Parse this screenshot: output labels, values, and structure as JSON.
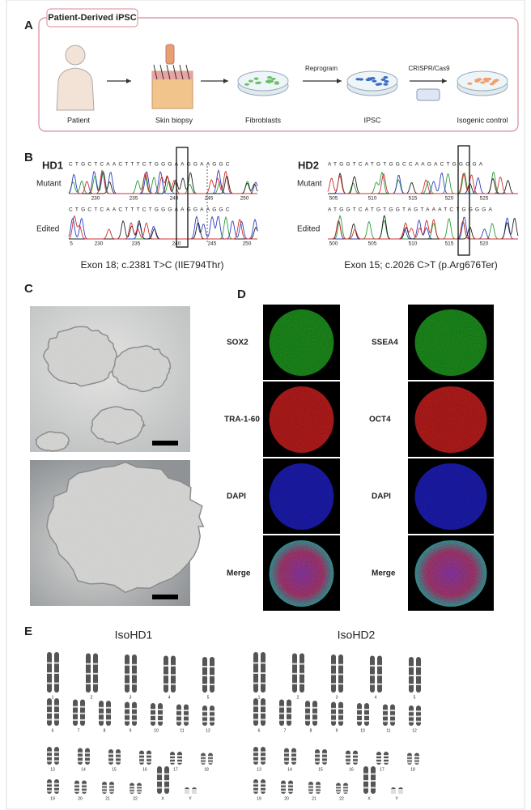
{
  "panel_labels": [
    "A",
    "B",
    "C",
    "D",
    "E"
  ],
  "panel_a": {
    "title": "Patient-Derived iPSC",
    "steps": [
      "Patient",
      "Skin biopsy",
      "Fibroblasts",
      "IPSC",
      "Isogenic control"
    ],
    "arrows": [
      "Reprogram",
      "CRISPR/Cas9"
    ]
  },
  "panel_b": [
    {
      "name": "HD1",
      "caption": "Exon 18; c.2381 T>C (IIE794Thr)",
      "tracks": [
        {
          "label": "Mutant",
          "sequence": "CTGCTCAACTTTCTGGGAAGGAAGGC",
          "positions": [
            230,
            235,
            240,
            245,
            250
          ]
        },
        {
          "label": "Edited",
          "sequence": "CTGCTCAACTTTCTGGGAAGGAAGGC",
          "positions": [
            5,
            230,
            235,
            240,
            245,
            250
          ]
        }
      ]
    },
    {
      "name": "HD2",
      "caption": "Exon 15; c.2026 C>T (p.Arg676Ter)",
      "tracks": [
        {
          "label": "Mutant",
          "sequence": "ATGGTCATGTGGCCAAGACTGGGGA",
          "positions": [
            505,
            510,
            515,
            520,
            525
          ]
        },
        {
          "label": "Edited",
          "sequence": "ATGGTCATGTGGTAGTAAATCTGGGGA",
          "positions": [
            500,
            505,
            510,
            515,
            520
          ]
        }
      ]
    }
  ],
  "panel_d": {
    "columns": [
      [
        "SOX2",
        "TRA-1-60",
        "DAPI",
        "Merge"
      ],
      [
        "SSEA4",
        "OCT4",
        "DAPI",
        "Merge"
      ]
    ]
  },
  "panel_e": {
    "karyotypes": [
      {
        "title": "IsoHD1",
        "chromosomes": [
          "1",
          "2",
          "3",
          "4",
          "5",
          "6",
          "7",
          "8",
          "9",
          "10",
          "11",
          "12",
          "13",
          "14",
          "15",
          "16",
          "17",
          "18",
          "19",
          "20",
          "21",
          "22",
          "X",
          "Y"
        ]
      },
      {
        "title": "IsoHD2",
        "chromosomes": [
          "1",
          "2",
          "3",
          "4",
          "5",
          "6",
          "7",
          "8",
          "9",
          "10",
          "11",
          "12",
          "13",
          "14",
          "15",
          "16",
          "17",
          "18",
          "19",
          "20",
          "21",
          "22",
          "X",
          "Y"
        ]
      }
    ]
  }
}
